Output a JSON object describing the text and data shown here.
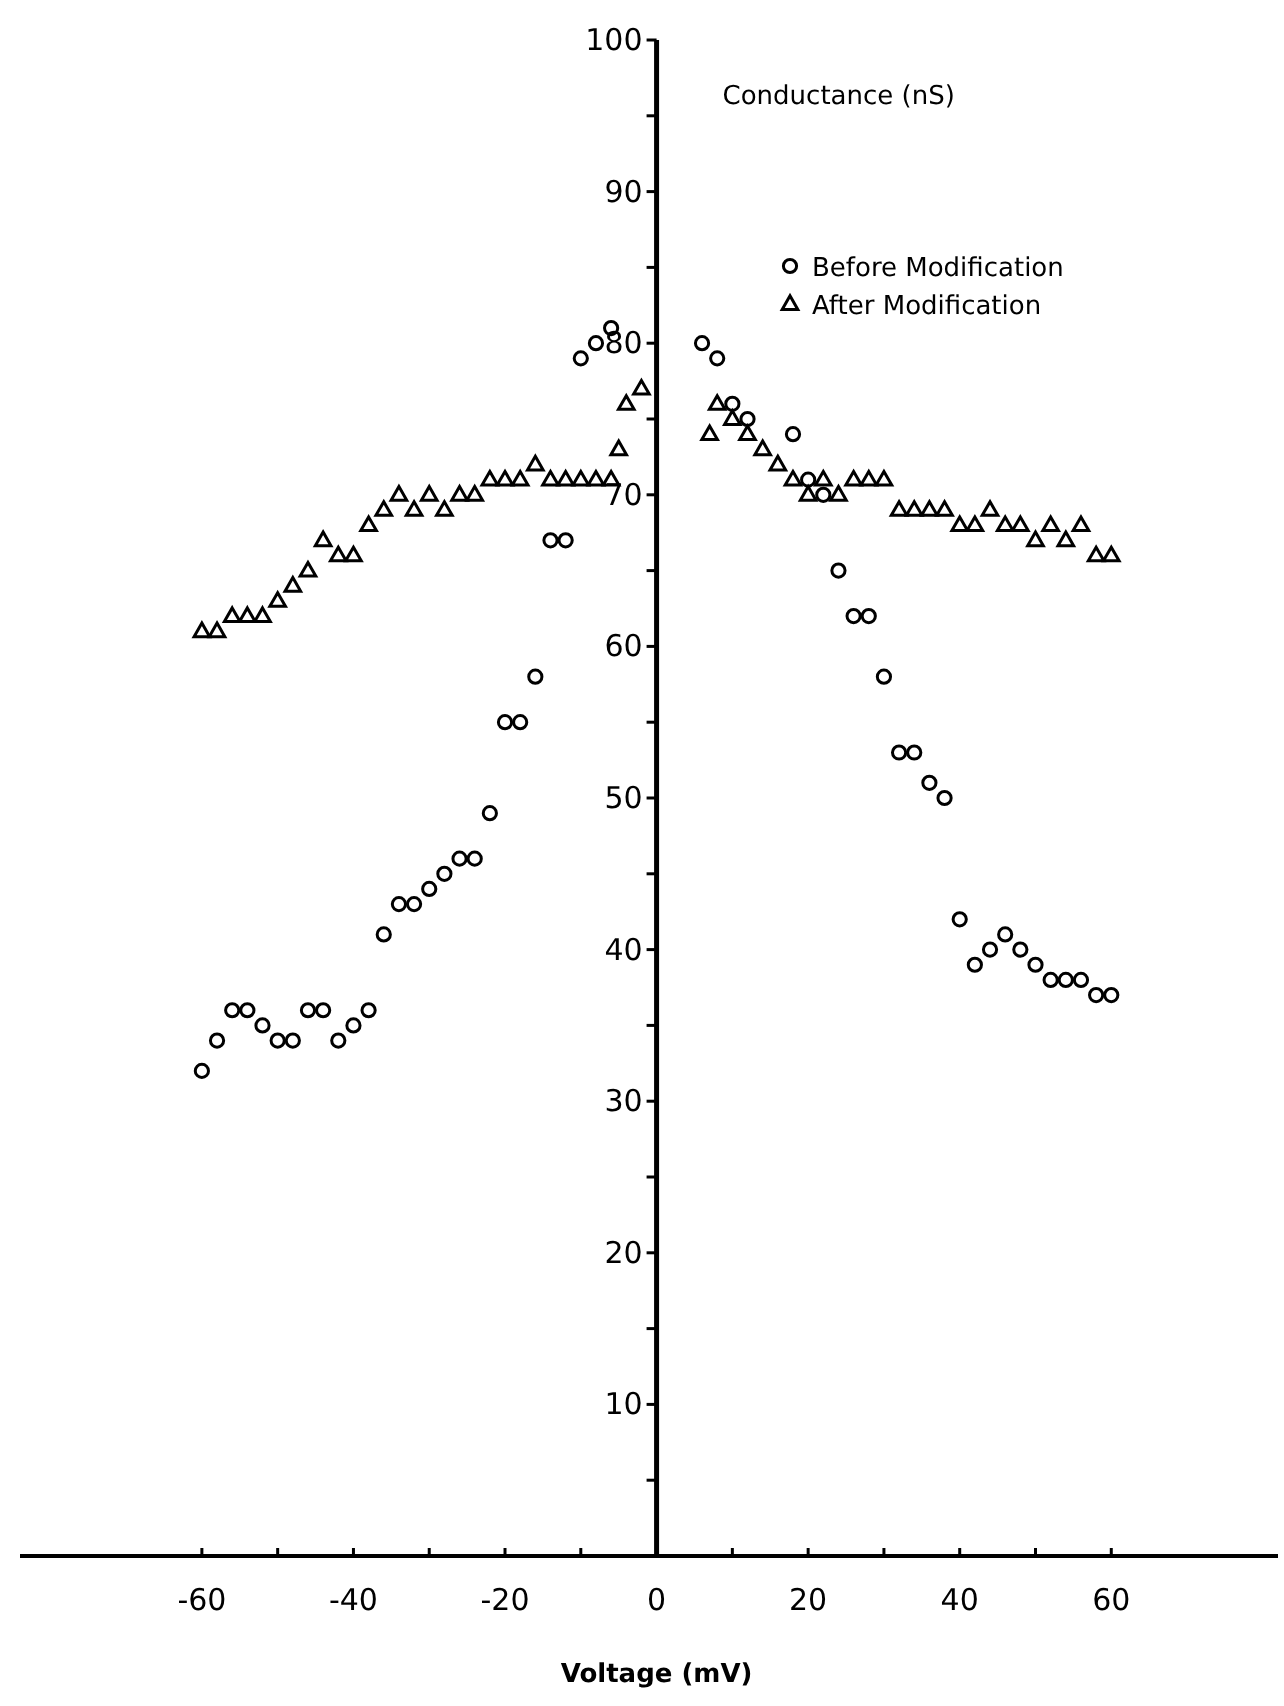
{
  "chart_data": {
    "type": "scatter",
    "xlabel": "Voltage (mV)",
    "ylabel": "Conductance (nS)",
    "xlim": [
      -84,
      82
    ],
    "ylim": [
      0,
      100
    ],
    "xticks": [
      -60,
      {
        "value": -50,
        "label": null
      },
      -40,
      {
        "value": -30,
        "label": null
      },
      -20,
      {
        "value": -10,
        "label": null
      },
      0,
      {
        "value": 10,
        "label": null
      },
      20,
      {
        "value": 30,
        "label": null
      },
      40,
      {
        "value": 50,
        "label": null
      },
      60
    ],
    "yticks": [
      {
        "value": 5,
        "label": null
      },
      10,
      {
        "value": 15,
        "label": null
      },
      20,
      {
        "value": 25,
        "label": null
      },
      30,
      {
        "value": 35,
        "label": null
      },
      40,
      {
        "value": 45,
        "label": null
      },
      50,
      {
        "value": 55,
        "label": null
      },
      60,
      {
        "value": 65,
        "label": null
      },
      70,
      {
        "value": 75,
        "label": null
      },
      80,
      {
        "value": 85,
        "label": null
      },
      90,
      {
        "value": 95,
        "label": null
      },
      100
    ],
    "legend": "top right",
    "grid": false,
    "series": [
      {
        "name": "Before Modification",
        "color": "#000000",
        "marker": "circle",
        "x": [
          -60,
          -58,
          -56,
          -54,
          -52,
          -50,
          -48,
          -46,
          -44,
          -42,
          -40,
          -38,
          -36,
          -34,
          -32,
          -30,
          -28,
          -26,
          -24,
          -22,
          -20,
          -18,
          -16,
          -14,
          -12,
          -10,
          -8,
          -6,
          6,
          8,
          10,
          12,
          18,
          20,
          22,
          24,
          26,
          28,
          30,
          32,
          34,
          36,
          38,
          40,
          42,
          44,
          46,
          48,
          50,
          52,
          54,
          56,
          58,
          60
        ],
        "values": [
          32,
          34,
          36,
          36,
          35,
          34,
          34,
          36,
          36,
          34,
          35,
          36,
          41,
          43,
          43,
          44,
          45,
          46,
          46,
          49,
          55,
          55,
          58,
          67,
          67,
          79,
          80,
          81,
          80,
          79,
          76,
          75,
          74,
          71,
          70,
          65,
          62,
          62,
          58,
          53,
          53,
          51,
          50,
          42,
          39,
          40,
          41,
          40,
          39,
          38,
          38,
          38,
          37,
          37
        ]
      },
      {
        "name": "After Modification",
        "color": "#000000",
        "marker": "triangle",
        "x": [
          -60,
          -58,
          -56,
          -54,
          -52,
          -50,
          -48,
          -46,
          -44,
          -42,
          -40,
          -38,
          -36,
          -34,
          -32,
          -30,
          -28,
          -26,
          -24,
          -22,
          -20,
          -18,
          -16,
          -14,
          -12,
          -10,
          -8,
          -6,
          -5,
          -4,
          -2,
          7,
          8,
          10,
          12,
          14,
          16,
          18,
          20,
          22,
          24,
          26,
          28,
          30,
          32,
          34,
          36,
          38,
          40,
          42,
          44,
          46,
          48,
          50,
          52,
          54,
          56,
          58,
          60
        ],
        "values": [
          61,
          61,
          62,
          62,
          62,
          63,
          64,
          65,
          67,
          66,
          66,
          68,
          69,
          70,
          69,
          70,
          69,
          70,
          70,
          71,
          71,
          71,
          72,
          71,
          71,
          71,
          71,
          71,
          73,
          76,
          77,
          74,
          76,
          75,
          74,
          73,
          72,
          71,
          70,
          71,
          70,
          71,
          71,
          71,
          69,
          69,
          69,
          69,
          68,
          68,
          69,
          68,
          68,
          67,
          68,
          67,
          68,
          66,
          66
        ]
      }
    ]
  }
}
